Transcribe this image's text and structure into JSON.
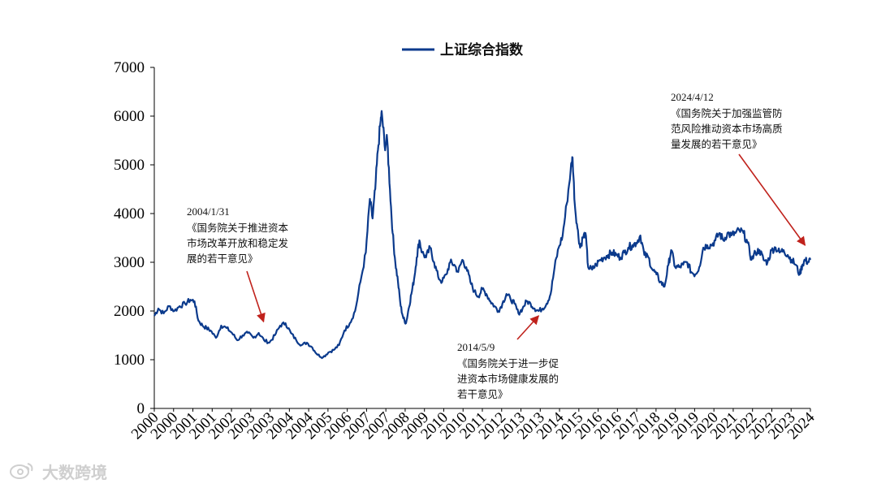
{
  "chart_data": {
    "type": "line",
    "title": "",
    "legend": {
      "position": "top-center",
      "entries": [
        "上证综合指数"
      ]
    },
    "series": [
      {
        "name": "上证综合指数",
        "color": "#0b3a8c",
        "points": [
          [
            2000.0,
            1900
          ],
          [
            2000.15,
            2050
          ],
          [
            2000.35,
            1950
          ],
          [
            2000.55,
            2100
          ],
          [
            2000.75,
            2000
          ],
          [
            2000.95,
            2100
          ],
          [
            2001.15,
            2150
          ],
          [
            2001.35,
            2230
          ],
          [
            2001.5,
            2200
          ],
          [
            2001.65,
            1800
          ],
          [
            2001.8,
            1700
          ],
          [
            2001.95,
            1650
          ],
          [
            2002.1,
            1600
          ],
          [
            2002.3,
            1450
          ],
          [
            2002.5,
            1700
          ],
          [
            2002.7,
            1650
          ],
          [
            2002.9,
            1550
          ],
          [
            2003.1,
            1400
          ],
          [
            2003.3,
            1500
          ],
          [
            2003.5,
            1550
          ],
          [
            2003.7,
            1450
          ],
          [
            2003.9,
            1550
          ],
          [
            2004.1,
            1400
          ],
          [
            2004.3,
            1350
          ],
          [
            2004.5,
            1500
          ],
          [
            2004.7,
            1700
          ],
          [
            2004.9,
            1750
          ],
          [
            2005.1,
            1550
          ],
          [
            2005.3,
            1400
          ],
          [
            2005.5,
            1300
          ],
          [
            2005.7,
            1350
          ],
          [
            2005.9,
            1250
          ],
          [
            2006.1,
            1100
          ],
          [
            2006.3,
            1050
          ],
          [
            2006.5,
            1150
          ],
          [
            2006.7,
            1200
          ],
          [
            2006.9,
            1300
          ],
          [
            2007.1,
            1600
          ],
          [
            2007.3,
            1750
          ],
          [
            2007.5,
            2000
          ],
          [
            2007.7,
            2600
          ],
          [
            2007.9,
            3200
          ],
          [
            2008.05,
            4300
          ],
          [
            2008.15,
            3900
          ],
          [
            2008.25,
            4500
          ],
          [
            2008.35,
            5300
          ],
          [
            2008.45,
            5900
          ],
          [
            2008.5,
            6050
          ],
          [
            2008.6,
            5400
          ],
          [
            2008.7,
            5500
          ],
          [
            2008.8,
            4500
          ],
          [
            2008.9,
            3600
          ],
          [
            2009.0,
            3000
          ],
          [
            2009.1,
            2600
          ],
          [
            2009.2,
            2100
          ],
          [
            2009.3,
            1850
          ],
          [
            2009.4,
            1750
          ],
          [
            2009.5,
            2050
          ],
          [
            2009.6,
            2350
          ],
          [
            2009.7,
            2650
          ],
          [
            2009.8,
            3100
          ],
          [
            2009.9,
            3450
          ],
          [
            2010.0,
            3200
          ],
          [
            2010.15,
            3100
          ],
          [
            2010.3,
            3300
          ],
          [
            2010.45,
            3000
          ],
          [
            2010.6,
            2700
          ],
          [
            2010.75,
            2600
          ],
          [
            2010.9,
            2750
          ],
          [
            2011.05,
            3000
          ],
          [
            2011.2,
            2950
          ],
          [
            2011.35,
            2800
          ],
          [
            2011.5,
            3050
          ],
          [
            2011.65,
            2900
          ],
          [
            2011.8,
            2600
          ],
          [
            2011.95,
            2400
          ],
          [
            2012.1,
            2300
          ],
          [
            2012.25,
            2450
          ],
          [
            2012.4,
            2350
          ],
          [
            2012.55,
            2200
          ],
          [
            2012.7,
            2100
          ],
          [
            2012.85,
            2000
          ],
          [
            2013.0,
            2150
          ],
          [
            2013.15,
            2350
          ],
          [
            2013.3,
            2250
          ],
          [
            2013.45,
            2150
          ],
          [
            2013.6,
            1950
          ],
          [
            2013.75,
            2050
          ],
          [
            2013.9,
            2200
          ],
          [
            2014.05,
            2150
          ],
          [
            2014.2,
            2050
          ],
          [
            2014.35,
            2000
          ],
          [
            2014.5,
            2050
          ],
          [
            2014.65,
            2150
          ],
          [
            2014.8,
            2350
          ],
          [
            2014.95,
            2900
          ],
          [
            2015.1,
            3300
          ],
          [
            2015.25,
            3550
          ],
          [
            2015.4,
            4200
          ],
          [
            2015.55,
            4900
          ],
          [
            2015.62,
            5150
          ],
          [
            2015.7,
            4200
          ],
          [
            2015.8,
            3700
          ],
          [
            2015.9,
            3300
          ],
          [
            2016.0,
            3500
          ],
          [
            2016.1,
            3600
          ],
          [
            2016.2,
            2900
          ],
          [
            2016.35,
            2850
          ],
          [
            2016.5,
            2950
          ],
          [
            2016.65,
            3050
          ],
          [
            2016.8,
            3100
          ],
          [
            2016.95,
            3150
          ],
          [
            2017.1,
            3200
          ],
          [
            2017.25,
            3150
          ],
          [
            2017.4,
            3100
          ],
          [
            2017.55,
            3200
          ],
          [
            2017.7,
            3300
          ],
          [
            2017.85,
            3350
          ],
          [
            2018.0,
            3400
          ],
          [
            2018.15,
            3550
          ],
          [
            2018.3,
            3150
          ],
          [
            2018.45,
            3100
          ],
          [
            2018.6,
            2850
          ],
          [
            2018.75,
            2750
          ],
          [
            2018.9,
            2600
          ],
          [
            2019.05,
            2500
          ],
          [
            2019.2,
            2950
          ],
          [
            2019.3,
            3250
          ],
          [
            2019.45,
            2900
          ],
          [
            2019.6,
            2900
          ],
          [
            2019.75,
            2950
          ],
          [
            2019.9,
            3000
          ],
          [
            2020.05,
            2800
          ],
          [
            2020.2,
            2750
          ],
          [
            2020.35,
            2900
          ],
          [
            2020.5,
            3300
          ],
          [
            2020.65,
            3350
          ],
          [
            2020.8,
            3350
          ],
          [
            2020.95,
            3450
          ],
          [
            2021.1,
            3600
          ],
          [
            2021.25,
            3450
          ],
          [
            2021.4,
            3600
          ],
          [
            2021.55,
            3550
          ],
          [
            2021.7,
            3600
          ],
          [
            2021.85,
            3650
          ],
          [
            2022.0,
            3600
          ],
          [
            2022.15,
            3400
          ],
          [
            2022.3,
            3050
          ],
          [
            2022.45,
            3200
          ],
          [
            2022.6,
            3250
          ],
          [
            2022.75,
            3050
          ],
          [
            2022.9,
            3000
          ],
          [
            2023.05,
            3250
          ],
          [
            2023.2,
            3300
          ],
          [
            2023.35,
            3200
          ],
          [
            2023.5,
            3250
          ],
          [
            2023.65,
            3150
          ],
          [
            2023.8,
            3050
          ],
          [
            2023.95,
            2950
          ],
          [
            2024.1,
            2750
          ],
          [
            2024.2,
            2950
          ],
          [
            2024.3,
            3050
          ],
          [
            2024.4,
            3000
          ],
          [
            2024.5,
            3050
          ]
        ]
      }
    ],
    "xlim": [
      2000,
      2024.5
    ],
    "ylim": [
      0,
      7000
    ],
    "yticks": [
      0,
      1000,
      2000,
      3000,
      4000,
      5000,
      6000,
      7000
    ],
    "xtick_labels": [
      "2000",
      "2000",
      "2001",
      "2001",
      "2002",
      "2003",
      "2003",
      "2004",
      "2004",
      "2005",
      "2006",
      "2007",
      "2007",
      "2008",
      "2009",
      "2010",
      "2010",
      "2011",
      "2012",
      "2013",
      "2013",
      "2014",
      "2015",
      "2016",
      "2016",
      "2017",
      "2018",
      "2019",
      "2019",
      "2020",
      "2021",
      "2022",
      "2022",
      "2023",
      "2024"
    ],
    "annotations": [
      {
        "date": "2004/1/31",
        "lines": [
          "《国务院关于推进资本",
          "市场改革开放和稳定发",
          "展的若干意见》"
        ],
        "arrow_to": [
          2004.08,
          1780
        ],
        "arrow_direction": "down"
      },
      {
        "date": "2014/5/9",
        "lines": [
          "《国务院关于进一步促",
          "进资本市场健康发展的",
          "若干意见》"
        ],
        "arrow_to": [
          2014.35,
          1900
        ],
        "arrow_direction": "up"
      },
      {
        "date": "2024/4/12",
        "lines": [
          "《国务院关于加强监管防",
          "范风险推动资本市场高质",
          "量发展的若干意见》"
        ],
        "arrow_to": [
          2024.3,
          3350
        ],
        "arrow_direction": "down"
      }
    ],
    "grid": false
  },
  "watermark": {
    "text": "大数跨境",
    "icon": "weibo-logo-icon"
  }
}
